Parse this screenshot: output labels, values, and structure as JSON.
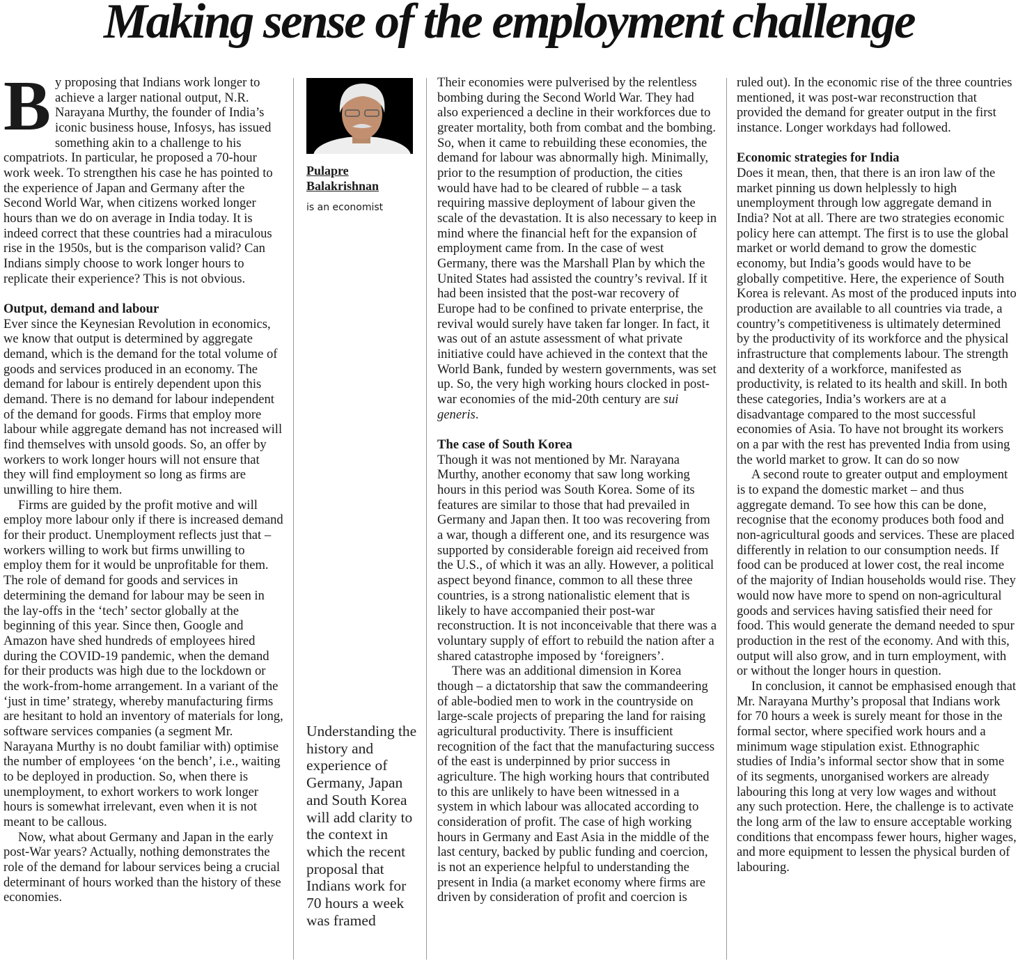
{
  "headline": "Making sense of the employment challenge",
  "author": {
    "name_line1": "Pulapre",
    "name_line2": "Balakrishnan",
    "role": "is an economist"
  },
  "pull_quote": "Understanding the history and experience of Germany, Japan and South Korea will add clarity to the context in which the recent proposal that Indians work for 70 hours a week was framed",
  "column1": {
    "drop_cap": "B",
    "p1": "y proposing that Indians work longer to achieve a larger national output, N.R. Narayana Murthy, the founder of India’s iconic business house, Infosys, has issued something akin to a challenge to his compatriots. In particular, he proposed a 70-hour work week. To strengthen his case he has pointed to the experience of Japan and Germany after the Second World War, when citizens worked longer hours than we do on average in India today. It is indeed correct that these countries had a miraculous rise in the 1950s, but is the comparison valid? Can Indians simply choose to work longer hours to replicate their experience? This is not obvious.",
    "heading1": "Output, demand and labour",
    "p2": "Ever since the Keynesian Revolution in economics, we know that output is determined by aggregate demand, which is the demand for the total volume of goods and services produced in an economy. The demand for labour is entirely dependent upon this demand. There is no demand for labour independent of the demand for goods. Firms that employ more labour while aggregate demand has not increased will find themselves with unsold goods. So, an offer by workers to work longer hours will not ensure that they will find employment so long as firms are unwilling to hire them.",
    "p3": "Firms are guided by the profit motive and will employ more labour only if there is increased demand for their product. Unemployment reflects just that – workers willing to work but firms unwilling to employ them for it would be unprofitable for them. The role of demand for goods and services in determining the demand for labour may be seen in the lay-offs in the ‘tech’ sector globally at the beginning of this year. Since then, Google and Amazon have shed hundreds of employees hired during the COVID-19 pandemic, when the demand for their products was high due to the lockdown or the work-from-home arrangement. In a variant of the ‘just in time’ strategy, whereby manufacturing firms are hesitant to hold an inventory of materials for long, software services companies (a segment Mr. Narayana Murthy is no doubt familiar with) optimise the number of employees ‘on the bench’, i.e., waiting to be deployed in production. So, when there is unemployment, to exhort workers to work longer hours is somewhat irrelevant, even when it is not meant to be callous.",
    "p4": "Now, what about Germany and Japan in the early post-War years? Actually, nothing demonstrates the role of the demand for labour services being a crucial determinant of hours worked than the history of these economies."
  },
  "column3": {
    "p1": "Their economies were pulverised by the relentless bombing during the Second World War. They had also experienced a decline in their workforces due to greater mortality, both from combat and the bombing. So, when it came to rebuilding these economies, the demand for labour was abnormally high. Minimally, prior to the resumption of production, the cities would have had to be cleared of rubble – a task requiring massive deployment of labour given the scale of the devastation. It is also necessary to keep in mind where the financial heft for the expansion of employment came from. In the case of west Germany, there was the Marshall Plan by which the United States had assisted the country’s revival. If it had been insisted that the post-war recovery of Europe had to be confined to private enterprise, the revival would surely have taken far longer. In fact, it was out of an astute assessment of what private initiative could have achieved in the context that the World Bank, funded by western governments, was set up. So, the very high working hours clocked in post-war economies of the mid-20th century are ",
    "p1_italic": "sui generis",
    "p1_end": ".",
    "heading": "The case of South Korea",
    "p2": "Though it was not mentioned by Mr. Narayana Murthy, another economy that saw long working hours in this period was South Korea. Some of its features are similar to those that had prevailed in Germany and Japan then. It too was recovering from a war, though a different one, and its resurgence was supported by considerable foreign aid received from the U.S., of which it was an ally. However, a political aspect beyond finance, common to all these three countries, is a strong nationalistic element that is likely to have accompanied their post-war reconstruction. It is not inconceivable that there was a voluntary supply of effort to rebuild the nation after a shared catastrophe imposed by ‘foreigners’.",
    "p3": "There was an additional dimension in Korea though – a dictatorship that saw the commandeering of able-bodied men to work in the countryside on large-scale projects of preparing the land for raising agricultural productivity. There is insufficient recognition of the fact that the manufacturing success of the east is underpinned by prior success in agriculture. The high working hours that contributed to this are unlikely to have been witnessed in a system in which labour was allocated according to consideration of profit. The case of high working hours in Germany and East Asia in the middle of the last century, backed by public funding and coercion, is not an experience helpful to understanding the present in India (a market economy where firms are driven by consideration of profit and coercion is"
  },
  "column4": {
    "p1": "ruled out). In the economic rise of the three countries mentioned, it was post-war reconstruction that provided the demand for greater output in the first instance. Longer workdays had followed.",
    "heading": "Economic strategies for India",
    "p2": "Does it mean, then, that there is an iron law of the market pinning us down helplessly to high unemployment through low aggregate demand in India? Not at all. There are two strategies economic policy here can attempt. The first is to use the global market or world demand to grow the domestic economy, but India’s goods would have to be globally competitive. Here, the experience of South Korea is relevant. As most of the produced inputs into production are available to all countries via trade, a country’s competitiveness is ultimately determined by the productivity of its workforce and the physical infrastructure that complements labour. The strength and dexterity of a workforce, manifested as productivity, is related to its health and skill. In both these categories, India’s workers are at a disadvantage compared to the most successful economies of Asia. To have not brought its workers on a par with the rest has prevented India from using the world market to grow. It can do so now",
    "p3": "A second route to greater output and employment is to expand the domestic market – and thus aggregate demand. To see how this can be done, recognise that the economy produces both food and non-agricultural goods and services. These are placed differently in relation to our consumption needs. If food can be produced at lower cost, the real income of the majority of Indian households would rise. They would now have more to spend on non-agricultural goods and services having satisfied their need for food. This would generate the demand needed to spur production in the rest of the economy. And with this, output will also grow, and in turn employment, with or without the longer hours in question.",
    "p4": "In conclusion, it cannot be emphasised enough that Mr. Narayana Murthy’s proposal that Indians work for 70 hours a week is surely meant for those in the formal sector, where specified work hours and a minimum wage stipulation exist. Ethnographic studies of India’s informal sector show that in some of its segments, unorganised workers are already labouring this long at very low wages and without any such protection. Here, the challenge is to activate the long arm of the law to ensure acceptable working conditions that encompass fewer hours, higher wages, and more equipment to lessen the physical burden of labouring."
  }
}
